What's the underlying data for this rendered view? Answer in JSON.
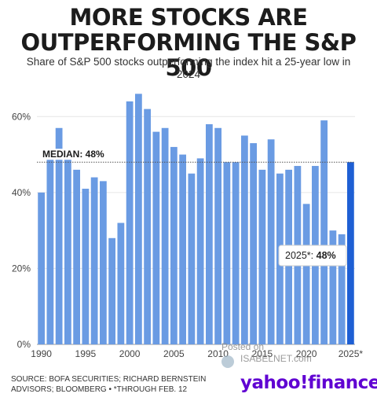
{
  "header": {
    "title_line1": "MORE STOCKS ARE",
    "title_line2": "OUTPERFORMING THE S&P 500",
    "subtitle": "Share of S&P 500 stocks outperforming the index hit a 25-year low in 2024"
  },
  "chart_data": {
    "type": "bar",
    "title": "",
    "xlabel": "",
    "ylabel": "",
    "ylim": [
      0,
      70
    ],
    "y_ticks": [
      "0%",
      "20%",
      "40%",
      "60%"
    ],
    "y_tick_values": [
      0,
      20,
      40,
      60
    ],
    "x_tick_labels": [
      "1990",
      "1995",
      "2000",
      "2005",
      "2010",
      "2015",
      "2020",
      "2025*"
    ],
    "categories": [
      "1990",
      "1991",
      "1992",
      "1993",
      "1994",
      "1995",
      "1996",
      "1997",
      "1998",
      "1999",
      "2000",
      "2001",
      "2002",
      "2003",
      "2004",
      "2005",
      "2006",
      "2007",
      "2008",
      "2009",
      "2010",
      "2011",
      "2012",
      "2013",
      "2014",
      "2015",
      "2016",
      "2017",
      "2018",
      "2019",
      "2020",
      "2021",
      "2022",
      "2023",
      "2024",
      "2025*"
    ],
    "values": [
      40,
      49,
      57,
      49,
      46,
      41,
      44,
      43,
      28,
      32,
      64,
      66,
      62,
      56,
      57,
      52,
      50,
      45,
      49,
      58,
      57,
      48,
      48,
      55,
      53,
      46,
      54,
      45,
      46,
      47,
      37,
      47,
      59,
      30,
      29,
      48
    ],
    "highlight_index": 35,
    "median": 48,
    "median_label": "MEDIAN: 48%",
    "callout_label": "2025*: ",
    "callout_value": "48%",
    "grid": true,
    "colors": {
      "bar": "#6a9be3",
      "highlight": "#1e5fd4",
      "median_line": "#555555",
      "grid": "#e6e6e6"
    }
  },
  "footer": {
    "source_line1": "SOURCE: BOFA SECURITIES; RICHARD BERNSTEIN",
    "source_line2": "ADVISORS; BLOOMBERG • *THROUGH FEB. 12",
    "logo": "yahoo!finance"
  },
  "watermark": {
    "label": "Posted on",
    "site": "ISABELNET.com"
  }
}
